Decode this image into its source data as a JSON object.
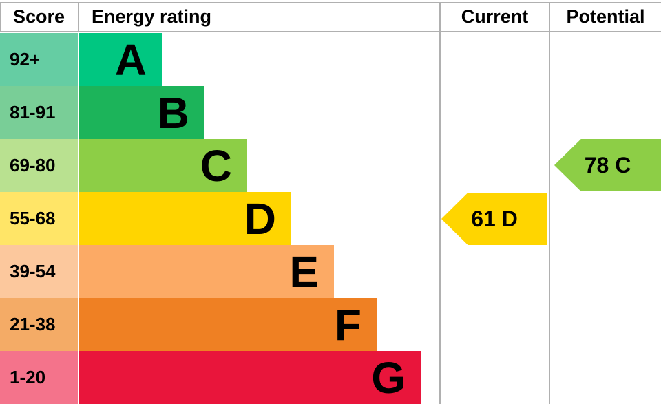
{
  "header": {
    "score": "Score",
    "energy_rating": "Energy rating",
    "current": "Current",
    "potential": "Potential"
  },
  "chart_data": {
    "type": "bar",
    "title": "Energy efficiency rating (EPC) band chart",
    "categories": [
      "A",
      "B",
      "C",
      "D",
      "E",
      "F",
      "G"
    ],
    "bands": [
      {
        "letter": "A",
        "score": "92+",
        "color": "#00c781",
        "score_tint": "#65cda3"
      },
      {
        "letter": "B",
        "score": "81-91",
        "color": "#1cb45a",
        "score_tint": "#79ce97"
      },
      {
        "letter": "C",
        "score": "69-80",
        "color": "#8dce46",
        "score_tint": "#b9e190"
      },
      {
        "letter": "D",
        "score": "55-68",
        "color": "#ffd500",
        "score_tint": "#ffe567"
      },
      {
        "letter": "E",
        "score": "39-54",
        "color": "#fcaa65",
        "score_tint": "#fcc89d"
      },
      {
        "letter": "F",
        "score": "21-38",
        "color": "#ef8023",
        "score_tint": "#f4ab66"
      },
      {
        "letter": "G",
        "score": "1-20",
        "color": "#e9153b",
        "score_tint": "#f4738b"
      }
    ],
    "current": {
      "value": 61,
      "band": "D",
      "label": "61 D",
      "color": "#ffd500"
    },
    "potential": {
      "value": 78,
      "band": "C",
      "label": "78 C",
      "color": "#8dce46"
    },
    "grid_color": "#b0b0b0",
    "text_color": "#000000",
    "legend_position": "none",
    "grid": "header-and-column-dividers-only"
  }
}
